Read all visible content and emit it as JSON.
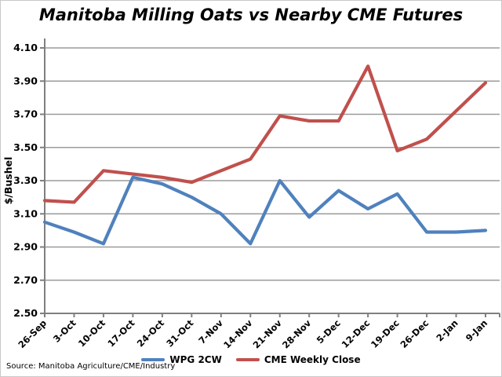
{
  "title": "Manitoba Milling Oats vs Nearby CME Futures",
  "source_note": "Source: Manitoba Agriculture/CME/Industry",
  "colors": {
    "wpg_line": "#4F81BD",
    "cme_line": "#C0504D",
    "gridline": "#9b9b9b",
    "axis": "#7f7f7f",
    "text": "#000000",
    "background": "#ffffff"
  },
  "chart_data": {
    "type": "line",
    "title": "Manitoba Milling Oats vs Nearby CME Futures",
    "xlabel": "",
    "ylabel": "$/Bushel",
    "ylim": [
      2.5,
      4.1
    ],
    "yticks": [
      4.1,
      3.9,
      3.7,
      3.5,
      3.3,
      3.1,
      2.9,
      2.7,
      2.5
    ],
    "grid": true,
    "legend_position": "bottom",
    "categories": [
      "26-Sep",
      "3-Oct",
      "10-Oct",
      "17-Oct",
      "24-Oct",
      "31-Oct",
      "7-Nov",
      "14-Nov",
      "21-Nov",
      "28-Nov",
      "5-Dec",
      "12-Dec",
      "19-Dec",
      "26-Dec",
      "2-Jan",
      "9-Jan"
    ],
    "series": [
      {
        "name": "WPG 2CW",
        "color": "#4F81BD",
        "values": [
          3.05,
          2.99,
          2.92,
          3.32,
          3.28,
          3.2,
          3.1,
          2.92,
          3.3,
          3.08,
          3.24,
          3.13,
          3.22,
          2.99,
          2.99,
          3.0
        ]
      },
      {
        "name": "CME Weekly Close",
        "color": "#C0504D",
        "values": [
          3.18,
          3.17,
          3.36,
          3.34,
          3.32,
          3.29,
          3.36,
          3.43,
          3.69,
          3.66,
          3.66,
          3.99,
          3.48,
          3.55,
          3.72,
          3.89
        ]
      }
    ]
  }
}
